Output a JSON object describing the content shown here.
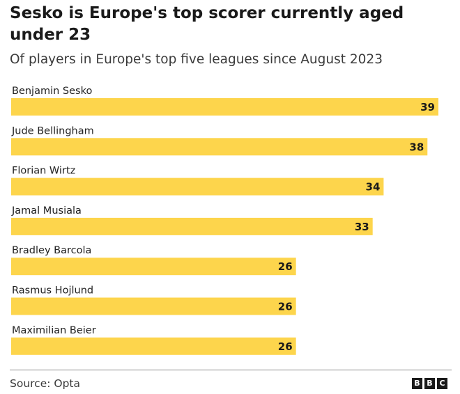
{
  "title": "Sesko is Europe's top scorer currently aged under 23",
  "subtitle": "Of players in Europe's top five leagues since August 2023",
  "source": "Source: Opta",
  "logo": [
    "B",
    "B",
    "C"
  ],
  "colors": {
    "bar": "#fdd54c",
    "text": "#222222",
    "divider": "#8a8a8a"
  },
  "chart_data": {
    "type": "bar",
    "orientation": "horizontal",
    "categories": [
      "Benjamin Sesko",
      "Jude Bellingham",
      "Florian Wirtz",
      "Jamal Musiala",
      "Bradley Barcola",
      "Rasmus Hojlund",
      "Maximilian Beier"
    ],
    "values": [
      39,
      38,
      34,
      33,
      26,
      26,
      26
    ],
    "xlim": [
      0,
      39
    ],
    "grid": false,
    "legend": "none"
  }
}
